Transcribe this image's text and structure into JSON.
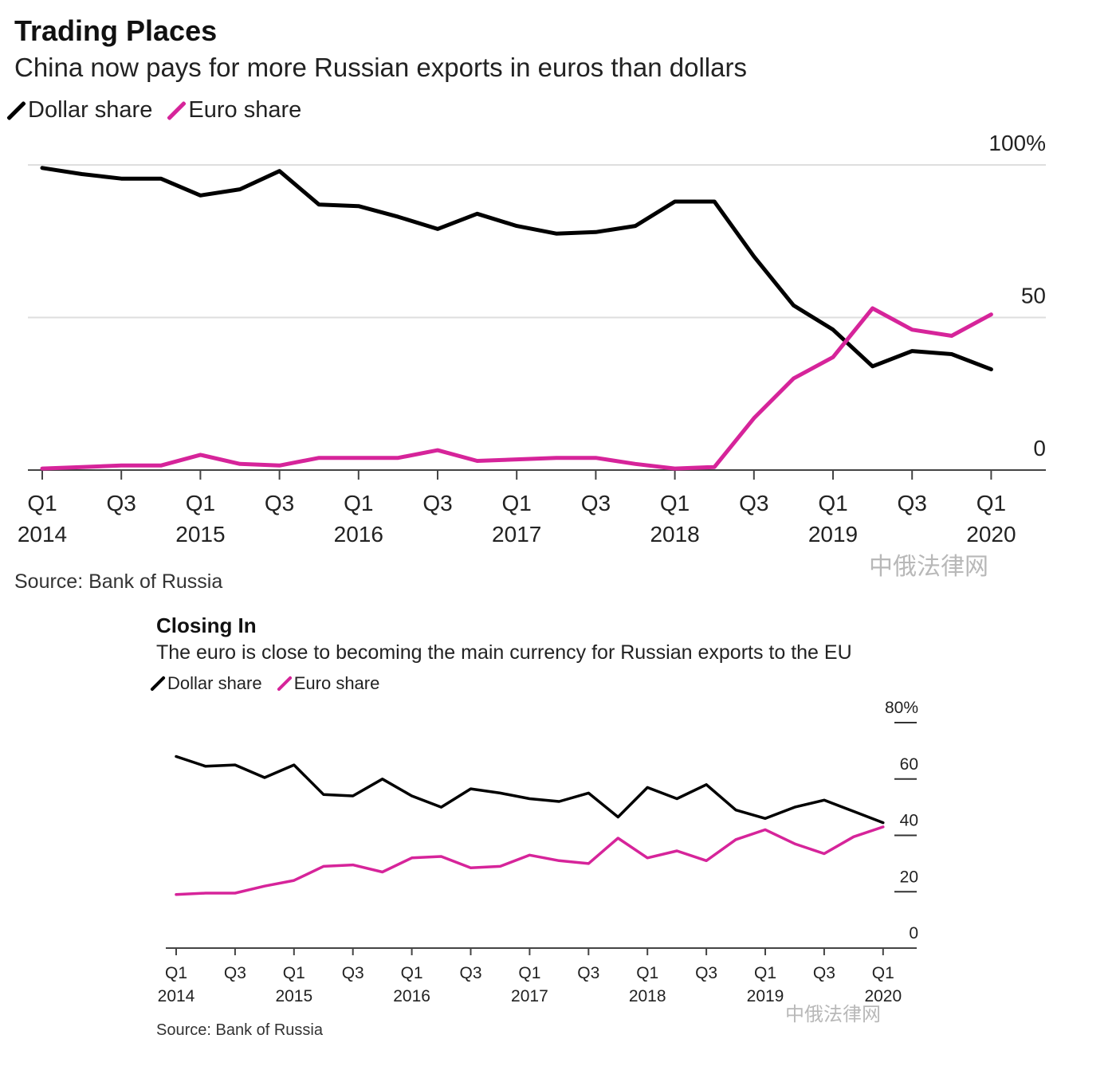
{
  "chart_data": [
    {
      "type": "line",
      "title": "Trading Places",
      "subtitle": "China now pays for more Russian exports in euros than dollars",
      "source": "Source: Bank of Russia",
      "x": [
        "Q1 2014",
        "Q2 2014",
        "Q3 2014",
        "Q4 2014",
        "Q1 2015",
        "Q2 2015",
        "Q3 2015",
        "Q4 2015",
        "Q1 2016",
        "Q2 2016",
        "Q3 2016",
        "Q4 2016",
        "Q1 2017",
        "Q2 2017",
        "Q3 2017",
        "Q4 2017",
        "Q1 2018",
        "Q2 2018",
        "Q3 2018",
        "Q4 2018",
        "Q1 2019",
        "Q2 2019",
        "Q3 2019",
        "Q4 2019",
        "Q1 2020"
      ],
      "tick_labels": [
        {
          "q": "Q1",
          "year": "2014"
        },
        {
          "q": "Q3",
          "year": ""
        },
        {
          "q": "Q1",
          "year": "2015"
        },
        {
          "q": "Q3",
          "year": ""
        },
        {
          "q": "Q1",
          "year": "2016"
        },
        {
          "q": "Q3",
          "year": ""
        },
        {
          "q": "Q1",
          "year": "2017"
        },
        {
          "q": "Q3",
          "year": ""
        },
        {
          "q": "Q1",
          "year": "2018"
        },
        {
          "q": "Q3",
          "year": ""
        },
        {
          "q": "Q1",
          "year": "2019"
        },
        {
          "q": "Q3",
          "year": ""
        },
        {
          "q": "Q1",
          "year": "2020"
        }
      ],
      "y_ticks": [
        "100%",
        "50",
        "0"
      ],
      "y_tick_values": [
        100,
        50,
        0
      ],
      "ylim": [
        0,
        100
      ],
      "grid": true,
      "legend": "top-left",
      "series": [
        {
          "name": "Dollar share",
          "color": "#000000",
          "values": [
            99,
            97,
            95.5,
            95.5,
            90,
            92,
            98,
            87,
            86.5,
            83,
            79,
            84,
            80,
            77.5,
            78,
            80,
            88,
            88,
            70,
            54,
            46,
            34,
            39,
            38,
            33
          ]
        },
        {
          "name": "Euro share",
          "color": "#d6249a",
          "values": [
            0.5,
            1,
            1.5,
            1.5,
            5,
            2,
            1.5,
            4,
            4,
            4,
            6.5,
            3,
            3.5,
            4,
            4,
            2,
            0.5,
            1,
            17,
            30,
            37,
            53,
            46,
            44,
            51
          ]
        }
      ]
    },
    {
      "type": "line",
      "title": "Closing In",
      "subtitle": "The euro is close to becoming the main currency for Russian exports to the EU",
      "source": "Source: Bank of Russia",
      "x": [
        "Q1 2014",
        "Q2 2014",
        "Q3 2014",
        "Q4 2014",
        "Q1 2015",
        "Q2 2015",
        "Q3 2015",
        "Q4 2015",
        "Q1 2016",
        "Q2 2016",
        "Q3 2016",
        "Q4 2016",
        "Q1 2017",
        "Q2 2017",
        "Q3 2017",
        "Q4 2017",
        "Q1 2018",
        "Q2 2018",
        "Q3 2018",
        "Q4 2018",
        "Q1 2019",
        "Q2 2019",
        "Q3 2019",
        "Q4 2019",
        "Q1 2020"
      ],
      "tick_labels": [
        {
          "q": "Q1",
          "year": "2014"
        },
        {
          "q": "Q3",
          "year": ""
        },
        {
          "q": "Q1",
          "year": "2015"
        },
        {
          "q": "Q3",
          "year": ""
        },
        {
          "q": "Q1",
          "year": "2016"
        },
        {
          "q": "Q3",
          "year": ""
        },
        {
          "q": "Q1",
          "year": "2017"
        },
        {
          "q": "Q3",
          "year": ""
        },
        {
          "q": "Q1",
          "year": "2018"
        },
        {
          "q": "Q3",
          "year": ""
        },
        {
          "q": "Q1",
          "year": "2019"
        },
        {
          "q": "Q3",
          "year": ""
        },
        {
          "q": "Q1",
          "year": "2020"
        }
      ],
      "y_ticks": [
        "80%",
        "60",
        "40",
        "20",
        "0"
      ],
      "y_tick_values": [
        80,
        60,
        40,
        20,
        0
      ],
      "ylim": [
        0,
        80
      ],
      "grid": false,
      "legend": "top-left",
      "series": [
        {
          "name": "Dollar share",
          "color": "#000000",
          "values": [
            68,
            64.5,
            65,
            60.5,
            65,
            54.5,
            54,
            60,
            54,
            50,
            56.5,
            55,
            53,
            52,
            55,
            46.5,
            57,
            53,
            58,
            49,
            46,
            50,
            52.5,
            48.5,
            44.5
          ]
        },
        {
          "name": "Euro share",
          "color": "#d6249a",
          "values": [
            19,
            19.5,
            19.5,
            22,
            24,
            29,
            29.5,
            27,
            32,
            32.5,
            28.5,
            29,
            33,
            31,
            30,
            39,
            32,
            34.5,
            31,
            38.5,
            42,
            37,
            33.5,
            39.5,
            43
          ]
        }
      ]
    }
  ],
  "watermark": "中俄法律网"
}
